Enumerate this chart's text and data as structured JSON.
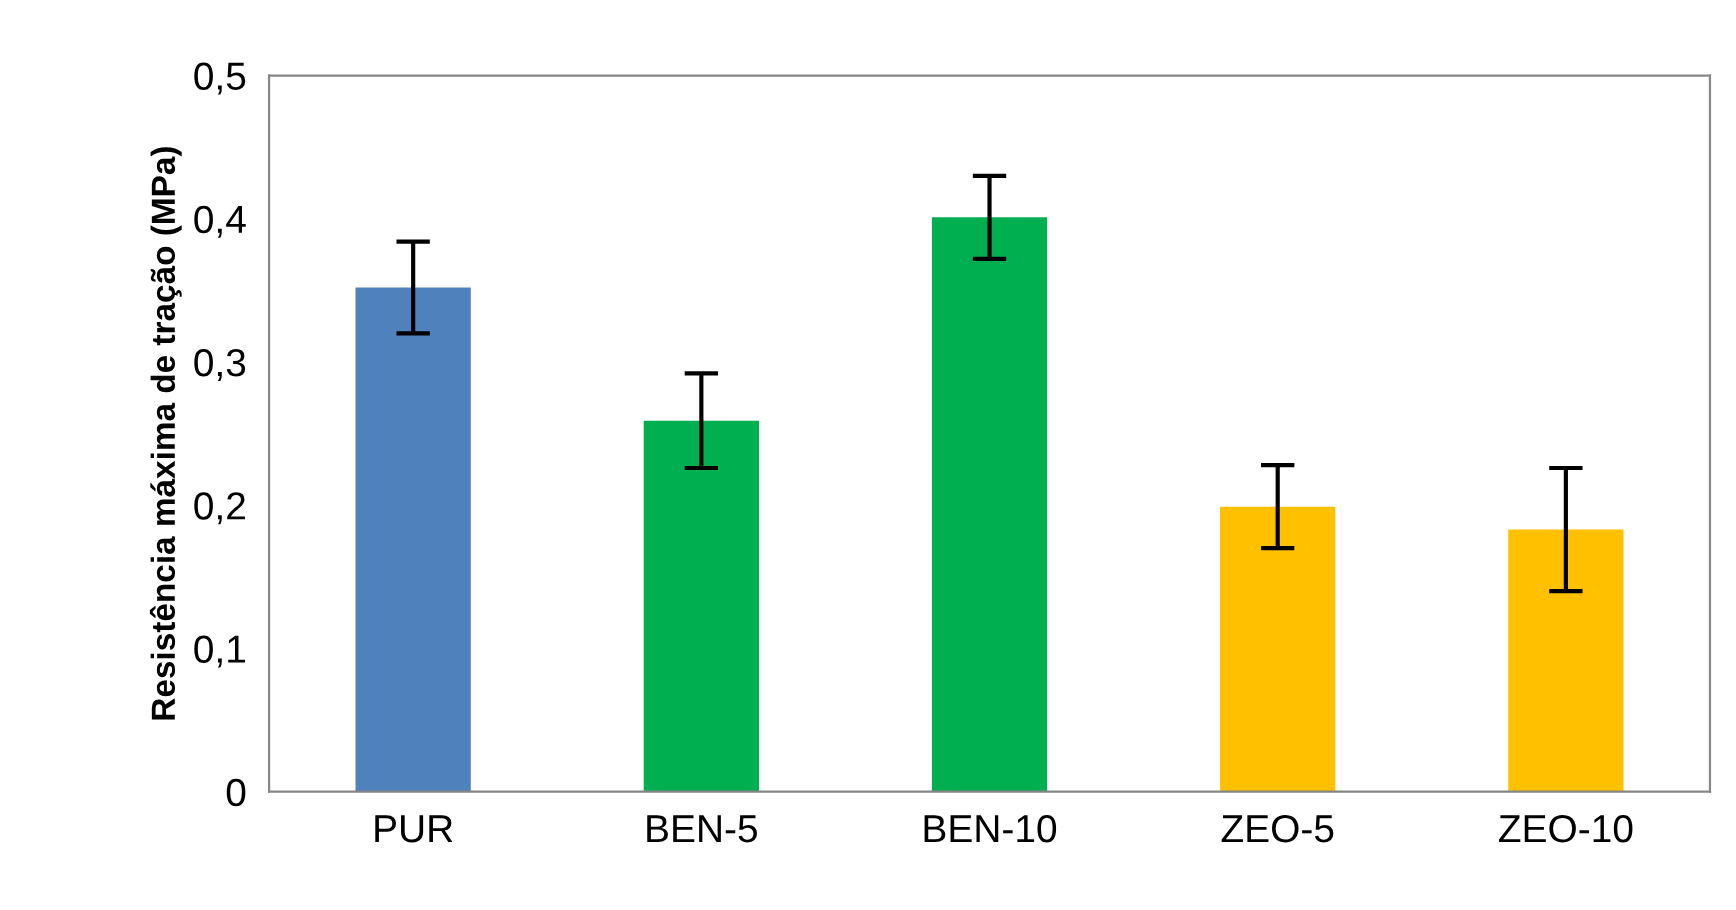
{
  "chart_data": {
    "type": "bar",
    "ylabel": "Resistência máxima de tração (MPa)",
    "categories": [
      "PUR",
      "BEN-5",
      "BEN-10",
      "ZEO-5",
      "ZEO-10"
    ],
    "values": [
      0.352,
      0.259,
      0.401,
      0.199,
      0.183
    ],
    "errors": [
      0.032,
      0.033,
      0.029,
      0.029,
      0.043
    ],
    "colors": [
      "#4f81bd",
      "#00b050",
      "#00b050",
      "#ffc000",
      "#ffc000"
    ],
    "ylim": [
      0,
      0.5
    ],
    "yticks": [
      {
        "value": 0,
        "label": "0"
      },
      {
        "value": 0.1,
        "label": "0,1"
      },
      {
        "value": 0.2,
        "label": "0,2"
      },
      {
        "value": 0.3,
        "label": "0,3"
      },
      {
        "value": 0.4,
        "label": "0,4"
      },
      {
        "value": 0.5,
        "label": "0,5"
      }
    ],
    "grid": false
  }
}
